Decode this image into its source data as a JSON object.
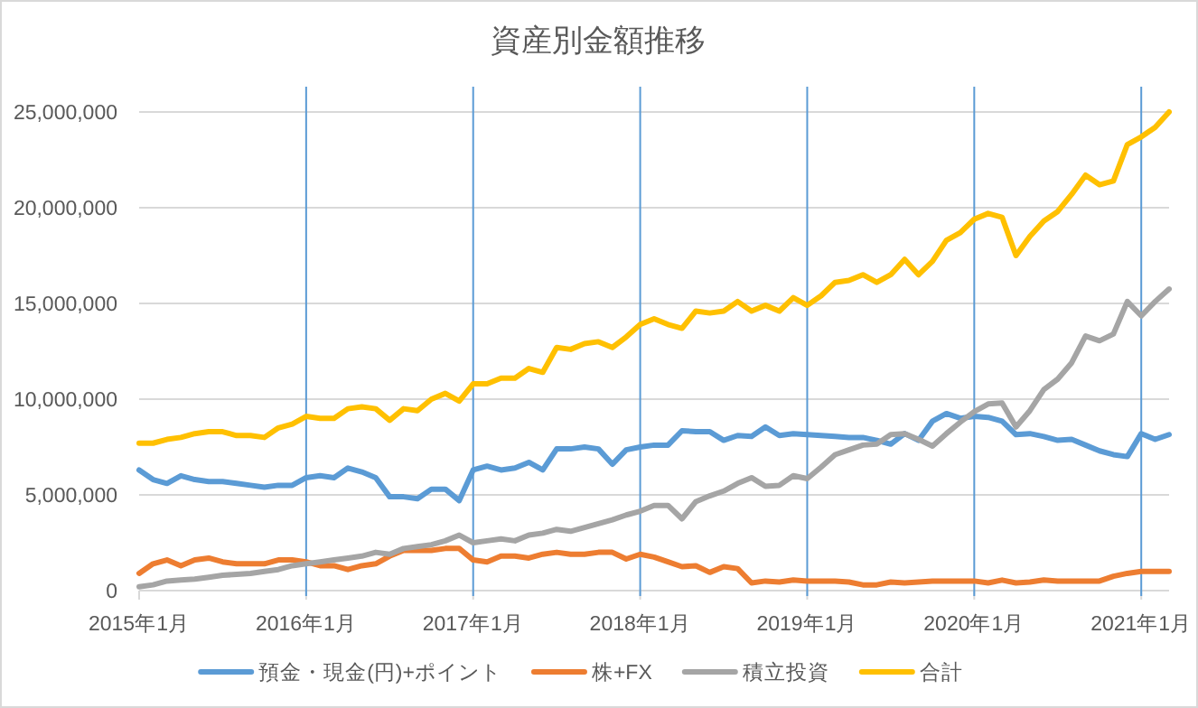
{
  "chart_data": {
    "type": "line",
    "title": "資産別金額推移",
    "x": [
      "2015-01",
      "2015-02",
      "2015-03",
      "2015-04",
      "2015-05",
      "2015-06",
      "2015-07",
      "2015-08",
      "2015-09",
      "2015-10",
      "2015-11",
      "2015-12",
      "2016-01",
      "2016-02",
      "2016-03",
      "2016-04",
      "2016-05",
      "2016-06",
      "2016-07",
      "2016-08",
      "2016-09",
      "2016-10",
      "2016-11",
      "2016-12",
      "2017-01",
      "2017-02",
      "2017-03",
      "2017-04",
      "2017-05",
      "2017-06",
      "2017-07",
      "2017-08",
      "2017-09",
      "2017-10",
      "2017-11",
      "2017-12",
      "2018-01",
      "2018-02",
      "2018-03",
      "2018-04",
      "2018-05",
      "2018-06",
      "2018-07",
      "2018-08",
      "2018-09",
      "2018-10",
      "2018-11",
      "2018-12",
      "2019-01",
      "2019-02",
      "2019-03",
      "2019-04",
      "2019-05",
      "2019-06",
      "2019-07",
      "2019-08",
      "2019-09",
      "2019-10",
      "2019-11",
      "2019-12",
      "2020-01",
      "2020-02",
      "2020-03",
      "2020-04",
      "2020-05",
      "2020-06",
      "2020-07",
      "2020-08",
      "2020-09",
      "2020-10",
      "2020-11",
      "2020-12",
      "2021-01",
      "2021-02",
      "2021-03"
    ],
    "series": [
      {
        "name": "預金・現金(円)+ポイント",
        "color": "#5b9bd5",
        "values": [
          6300000,
          5800000,
          5600000,
          6000000,
          5800000,
          5700000,
          5700000,
          5600000,
          5500000,
          5400000,
          5500000,
          5500000,
          5900000,
          6000000,
          5900000,
          6400000,
          6200000,
          5900000,
          4900000,
          4900000,
          4800000,
          5300000,
          5300000,
          4700000,
          6300000,
          6500000,
          6300000,
          6400000,
          6700000,
          6300000,
          7400000,
          7400000,
          7500000,
          7400000,
          6600000,
          7350000,
          7500000,
          7600000,
          7600000,
          8350000,
          8300000,
          8300000,
          7850000,
          8100000,
          8050000,
          8550000,
          8100000,
          8200000,
          8150000,
          8100000,
          8050000,
          8000000,
          8000000,
          7850000,
          7650000,
          8200000,
          7850000,
          8850000,
          9250000,
          9000000,
          9100000,
          9050000,
          8850000,
          8150000,
          8200000,
          8050000,
          7850000,
          7900000,
          7600000,
          7300000,
          7100000,
          7000000,
          8200000,
          7900000,
          8150000
        ]
      },
      {
        "name": "株+FX",
        "color": "#ed7d31",
        "values": [
          900000,
          1400000,
          1600000,
          1300000,
          1600000,
          1700000,
          1500000,
          1400000,
          1400000,
          1400000,
          1600000,
          1600000,
          1500000,
          1300000,
          1300000,
          1100000,
          1300000,
          1400000,
          1800000,
          2100000,
          2100000,
          2100000,
          2200000,
          2200000,
          1600000,
          1500000,
          1800000,
          1800000,
          1700000,
          1900000,
          2000000,
          1900000,
          1900000,
          2000000,
          2000000,
          1650000,
          1900000,
          1750000,
          1500000,
          1250000,
          1300000,
          950000,
          1250000,
          1150000,
          400000,
          500000,
          450000,
          550000,
          500000,
          500000,
          500000,
          450000,
          300000,
          300000,
          450000,
          400000,
          450000,
          500000,
          500000,
          500000,
          500000,
          400000,
          550000,
          400000,
          450000,
          550000,
          500000,
          500000,
          500000,
          500000,
          750000,
          900000,
          1000000,
          1000000,
          1000000
        ]
      },
      {
        "name": "積立投資",
        "color": "#a5a5a5",
        "values": [
          200000,
          300000,
          500000,
          550000,
          600000,
          700000,
          800000,
          850000,
          900000,
          1000000,
          1100000,
          1300000,
          1400000,
          1500000,
          1600000,
          1700000,
          1800000,
          2000000,
          1900000,
          2200000,
          2300000,
          2400000,
          2600000,
          2900000,
          2500000,
          2600000,
          2700000,
          2600000,
          2900000,
          3000000,
          3200000,
          3100000,
          3300000,
          3500000,
          3700000,
          3950000,
          4150000,
          4450000,
          4450000,
          3750000,
          4650000,
          4950000,
          5200000,
          5600000,
          5900000,
          5450000,
          5500000,
          6000000,
          5850000,
          6450000,
          7100000,
          7350000,
          7600000,
          7650000,
          8150000,
          8200000,
          7900000,
          7550000,
          8200000,
          8800000,
          9350000,
          9750000,
          9800000,
          8550000,
          9400000,
          10500000,
          11050000,
          11900000,
          13300000,
          13050000,
          13400000,
          15100000,
          14350000,
          15100000,
          15750000
        ]
      },
      {
        "name": "合計",
        "color": "#ffc000",
        "values": [
          7700000,
          7700000,
          7900000,
          8000000,
          8200000,
          8300000,
          8300000,
          8100000,
          8100000,
          8000000,
          8500000,
          8700000,
          9100000,
          9000000,
          9000000,
          9500000,
          9600000,
          9500000,
          8900000,
          9500000,
          9400000,
          10000000,
          10300000,
          9900000,
          10800000,
          10800000,
          11100000,
          11100000,
          11600000,
          11400000,
          12700000,
          12600000,
          12900000,
          13000000,
          12700000,
          13250000,
          13900000,
          14200000,
          13900000,
          13700000,
          14600000,
          14500000,
          14600000,
          15100000,
          14600000,
          14900000,
          14600000,
          15300000,
          14900000,
          15400000,
          16100000,
          16200000,
          16500000,
          16100000,
          16500000,
          17300000,
          16500000,
          17200000,
          18300000,
          18700000,
          19400000,
          19700000,
          19500000,
          17500000,
          18500000,
          19300000,
          19800000,
          20700000,
          21700000,
          21200000,
          21400000,
          23300000,
          23700000,
          24200000,
          25000000
        ]
      }
    ],
    "xlim": [
      "2015-01",
      "2021-03"
    ],
    "xticks": [
      {
        "value": "2015-01",
        "label": "2015年1月"
      },
      {
        "value": "2016-01",
        "label": "2016年1月"
      },
      {
        "value": "2017-01",
        "label": "2017年1月"
      },
      {
        "value": "2018-01",
        "label": "2018年1月"
      },
      {
        "value": "2019-01",
        "label": "2019年1月"
      },
      {
        "value": "2020-01",
        "label": "2020年1月"
      },
      {
        "value": "2021-01",
        "label": "2021年1月"
      }
    ],
    "ylim": [
      0,
      25000000
    ],
    "yticks": [
      {
        "value": 0,
        "label": "0"
      },
      {
        "value": 5000000,
        "label": "5,000,000"
      },
      {
        "value": 10000000,
        "label": "10,000,000"
      },
      {
        "value": 15000000,
        "label": "15,000,000"
      },
      {
        "value": 20000000,
        "label": "20,000,000"
      },
      {
        "value": 25000000,
        "label": "25,000,000"
      }
    ],
    "ref_lines": [
      {
        "axis": "x",
        "value": "2016-01",
        "color": "#5b9bd5"
      },
      {
        "axis": "x",
        "value": "2017-01",
        "color": "#5b9bd5"
      },
      {
        "axis": "x",
        "value": "2018-01",
        "color": "#5b9bd5"
      },
      {
        "axis": "x",
        "value": "2019-01",
        "color": "#5b9bd5"
      },
      {
        "axis": "x",
        "value": "2020-01",
        "color": "#5b9bd5"
      },
      {
        "axis": "x",
        "value": "2021-01",
        "color": "#5b9bd5"
      }
    ],
    "grid": "y",
    "legend": "bottom",
    "marker": "none",
    "line_style": "solid"
  }
}
